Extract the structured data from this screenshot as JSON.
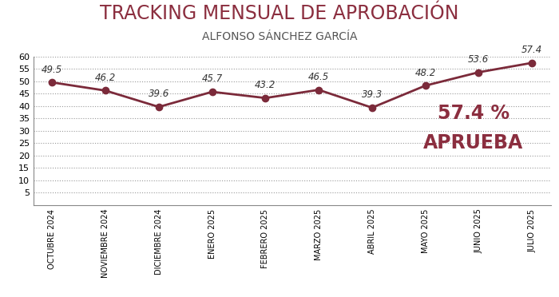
{
  "chart_data": {
    "type": "line",
    "title": "TRACKING MENSUAL DE APROBACIÓN",
    "subtitle": "ALFONSO SÁNCHEZ GARCÍA",
    "categories": [
      "OCTUBRE 2024",
      "NOVIEMBRE 2024",
      "DICIEMBRE 2024",
      "ENERO 2025",
      "FEBRERO 2025",
      "MARZO 2025",
      "ABRIL 2025",
      "MAYO 2025",
      "JUNIO 2025",
      "JULIO 2025"
    ],
    "values": [
      49.5,
      46.2,
      39.6,
      45.7,
      43.2,
      46.5,
      39.3,
      48.2,
      53.6,
      57.4
    ],
    "color": "#7b2a3a",
    "marker": "o",
    "line_style": "solid",
    "ylim": [
      0,
      60
    ],
    "yticks": [
      5,
      10,
      15,
      20,
      25,
      30,
      35,
      40,
      45,
      50,
      55,
      60
    ],
    "grid": true,
    "data_labels": true,
    "annotations": [
      "57.4 %",
      "APRUEBA"
    ]
  }
}
